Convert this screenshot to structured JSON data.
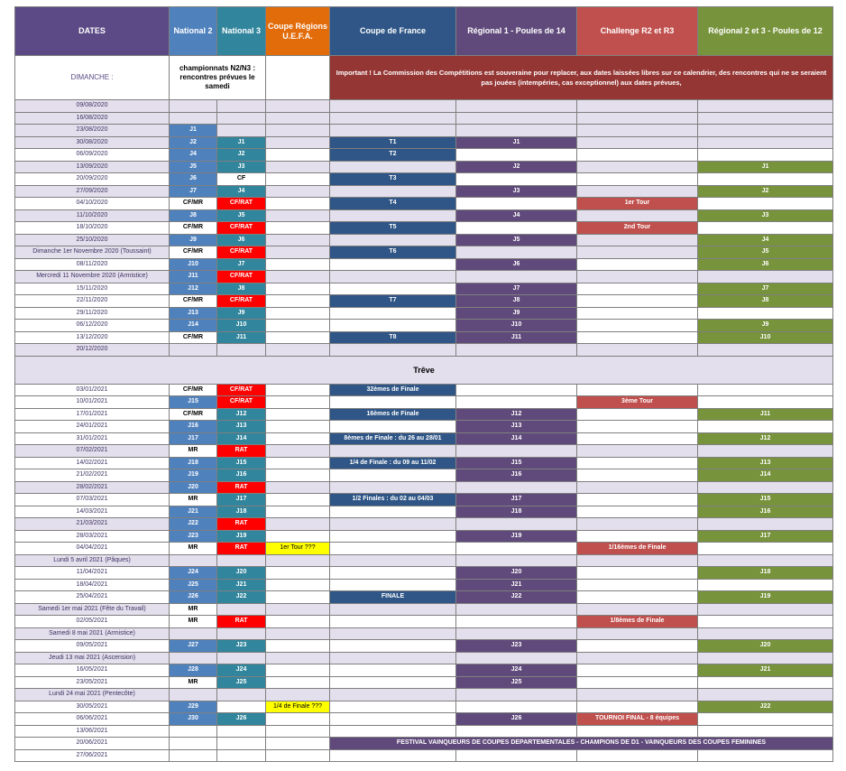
{
  "headers": {
    "dates": "DATES",
    "n2": "National 2",
    "n3": "National 3",
    "cru": "Coupe Régions U.E.F.A.",
    "cdf": "Coupe de France",
    "r1": "Régional 1 - Poules de 14",
    "ch": "Challenge R2 et R3",
    "r23": "Régional 2 et 3 - Poules de 12"
  },
  "subheader": {
    "dimanche": "DIMANCHE :",
    "championnats": "championnats N2/N3 : rencontres prévues le samedi",
    "important": "Important ! La Commission des Compétitions est souveraine pour replacer, aux dates laissées libres sur ce calendrier, des rencontres qui ne se seraient pas jouées (intempéries, cas exceptionnel) aux dates prévues,"
  },
  "treve": "Trêve",
  "festival": "FESTIVAL VAINQUEURS DE COUPES DEPARTEMENTALES - CHAMPIONS DE D1 - VAINQUEURS DES COUPES FEMININES",
  "colors": {
    "national2": "#4f81bd",
    "national3": "#31859c",
    "coupe_regions": "#e26b0a",
    "coupe_de_france": "#2f5686",
    "regional1": "#604a7b",
    "challenge": "#c0504d",
    "regional23": "#77933c",
    "rat": "#ff0000",
    "row_shade": "#e4dfec"
  },
  "rows_a": [
    {
      "d": "09/08/2020",
      "sh": 1,
      "n2": "",
      "n3": "",
      "cru": "",
      "cdf": "",
      "r1": "",
      "ch": "",
      "r23": ""
    },
    {
      "d": "16/08/2020",
      "sh": 1,
      "n2": "",
      "n3": "",
      "cru": "",
      "cdf": "",
      "r1": "",
      "ch": "",
      "r23": ""
    },
    {
      "d": "23/08/2020",
      "sh": 1,
      "n2": "J1",
      "n3": "",
      "cru": "",
      "cdf": "",
      "r1": "",
      "ch": "",
      "r23": ""
    },
    {
      "d": "30/08/2020",
      "sh": 1,
      "n2": "J2",
      "n3": "J1",
      "cru": "",
      "cdf": "T1",
      "r1": "J1",
      "ch": "",
      "r23": ""
    },
    {
      "d": "06/09/2020",
      "sh": 0,
      "n2": "J4",
      "n3": "J2",
      "cru": "",
      "cdf": "T2",
      "r1": "",
      "ch": "",
      "r23": ""
    },
    {
      "d": "13/09/2020",
      "sh": 1,
      "n2": "J5",
      "n3": "J3",
      "cru": "",
      "cdf": "",
      "r1": "J2",
      "ch": "",
      "r23": "J1"
    },
    {
      "d": "20/09/2020",
      "sh": 0,
      "n2": "J6",
      "n3": "CF",
      "cru": "",
      "cdf": "T3",
      "r1": "",
      "ch": "",
      "r23": ""
    },
    {
      "d": "27/09/2020",
      "sh": 1,
      "n2": "J7",
      "n3": "J4",
      "cru": "",
      "cdf": "",
      "r1": "J3",
      "ch": "",
      "r23": "J2"
    },
    {
      "d": "04/10/2020",
      "sh": 0,
      "n2": "CF/MR",
      "n3": "CF/RAT",
      "cru": "",
      "cdf": "T4",
      "r1": "",
      "ch": "1er Tour",
      "r23": ""
    },
    {
      "d": "11/10/2020",
      "sh": 1,
      "n2": "J8",
      "n3": "J5",
      "cru": "",
      "cdf": "",
      "r1": "J4",
      "ch": "",
      "r23": "J3"
    },
    {
      "d": "18/10/2020",
      "sh": 0,
      "n2": "CF/MR",
      "n3": "CF/RAT",
      "cru": "",
      "cdf": "T5",
      "r1": "",
      "ch": "2nd Tour",
      "r23": ""
    },
    {
      "d": "25/10/2020",
      "sh": 1,
      "n2": "J9",
      "n3": "J6",
      "cru": "",
      "cdf": "",
      "r1": "J5",
      "ch": "",
      "r23": "J4"
    },
    {
      "d": "Dimanche 1er Novembre 2020 (Toussaint)",
      "sh": 1,
      "n2": "CF/MR",
      "n3": "CF/RAT",
      "cru": "",
      "cdf": "T6",
      "r1": "",
      "ch": "",
      "r23": "J5"
    },
    {
      "d": "08/11/2020",
      "sh": 0,
      "n2": "J10",
      "n3": "J7",
      "cru": "",
      "cdf": "",
      "r1": "J6",
      "ch": "",
      "r23": "J6"
    },
    {
      "d": "Mercredi 11 Novembre 2020 (Armistice)",
      "sh": 1,
      "n2": "J11",
      "n3": "CF/RAT",
      "cru": "",
      "cdf": "",
      "r1": "",
      "ch": "",
      "r23": ""
    },
    {
      "d": "15/11/2020",
      "sh": 0,
      "n2": "J12",
      "n3": "J8",
      "cru": "",
      "cdf": "",
      "r1": "J7",
      "ch": "",
      "r23": "J7"
    },
    {
      "d": "22/11/2020",
      "sh": 0,
      "n2": "CF/MR",
      "n3": "CF/RAT",
      "cru": "",
      "cdf": "T7",
      "r1": "J8",
      "ch": "",
      "r23": "J8"
    },
    {
      "d": "29/11/2020",
      "sh": 0,
      "n2": "J13",
      "n3": "J9",
      "cru": "",
      "cdf": "",
      "r1": "J9",
      "ch": "",
      "r23": ""
    },
    {
      "d": "06/12/2020",
      "sh": 0,
      "n2": "J14",
      "n3": "J10",
      "cru": "",
      "cdf": "",
      "r1": "J10",
      "ch": "",
      "r23": "J9"
    },
    {
      "d": "13/12/2020",
      "sh": 0,
      "n2": "CF/MR",
      "n3": "J11",
      "cru": "",
      "cdf": "T8",
      "r1": "J11",
      "ch": "",
      "r23": "J10"
    },
    {
      "d": "20/12/2020",
      "sh": 1,
      "n2": "",
      "n3": "",
      "cru": "",
      "cdf": "",
      "r1": "",
      "ch": "",
      "r23": ""
    }
  ],
  "rows_b": [
    {
      "d": "03/01/2021",
      "sh": 0,
      "n2": "CF/MR",
      "n3": "CF/RAT",
      "cru": "",
      "cdf": "32èmes de Finale",
      "r1": "",
      "ch": "",
      "r23": ""
    },
    {
      "d": "10/01/2021",
      "sh": 0,
      "n2": "J15",
      "n3": "CF/RAT",
      "cru": "",
      "cdf": "",
      "r1": "",
      "ch": "3ème Tour",
      "r23": ""
    },
    {
      "d": "17/01/2021",
      "sh": 0,
      "n2": "CF/MR",
      "n3": "J12",
      "cru": "",
      "cdf": "16èmes de Finale",
      "r1": "J12",
      "ch": "",
      "r23": "J11"
    },
    {
      "d": "24/01/2021",
      "sh": 0,
      "n2": "J16",
      "n3": "J13",
      "cru": "",
      "cdf": "",
      "r1": "J13",
      "ch": "",
      "r23": ""
    },
    {
      "d": "31/01/2021",
      "sh": 0,
      "n2": "J17",
      "n3": "J14",
      "cru": "",
      "cdf": "8èmes de Finale : du 26 au 28/01",
      "r1": "J14",
      "ch": "",
      "r23": "J12"
    },
    {
      "d": "07/02/2021",
      "sh": 1,
      "n2": "MR",
      "n3": "RAT",
      "cru": "",
      "cdf": "",
      "r1": "",
      "ch": "",
      "r23": ""
    },
    {
      "d": "14/02/2021",
      "sh": 0,
      "n2": "J18",
      "n3": "J15",
      "cru": "",
      "cdf": "1/4 de Finale : du 09 au 11/02",
      "r1": "J15",
      "ch": "",
      "r23": "J13"
    },
    {
      "d": "21/02/2021",
      "sh": 0,
      "n2": "J19",
      "n3": "J16",
      "cru": "",
      "cdf": "",
      "r1": "J16",
      "ch": "",
      "r23": "J14"
    },
    {
      "d": "28/02/2021",
      "sh": 1,
      "n2": "J20",
      "n3": "RAT",
      "cru": "",
      "cdf": "",
      "r1": "",
      "ch": "",
      "r23": ""
    },
    {
      "d": "07/03/2021",
      "sh": 0,
      "n2": "MR",
      "n3": "J17",
      "cru": "",
      "cdf": "1/2 Finales : du 02 au 04/03",
      "r1": "J17",
      "ch": "",
      "r23": "J15"
    },
    {
      "d": "14/03/2021",
      "sh": 0,
      "n2": "J21",
      "n3": "J18",
      "cru": "",
      "cdf": "",
      "r1": "J18",
      "ch": "",
      "r23": "J16"
    },
    {
      "d": "21/03/2021",
      "sh": 1,
      "n2": "J22",
      "n3": "RAT",
      "cru": "",
      "cdf": "",
      "r1": "",
      "ch": "",
      "r23": ""
    },
    {
      "d": "28/03/2021",
      "sh": 0,
      "n2": "J23",
      "n3": "J19",
      "cru": "",
      "cdf": "",
      "r1": "J19",
      "ch": "",
      "r23": "J17"
    },
    {
      "d": "04/04/2021",
      "sh": 0,
      "n2": "MR",
      "n3": "RAT",
      "cru": "1er Tour ???",
      "cdf": "",
      "r1": "",
      "ch": "1/16èmes de Finale",
      "r23": ""
    },
    {
      "d": "Lundi 5 avril 2021 (Pâques)",
      "sh": 1,
      "n2": "",
      "n3": "",
      "cru": "",
      "cdf": "",
      "r1": "",
      "ch": "",
      "r23": ""
    },
    {
      "d": "11/04/2021",
      "sh": 0,
      "n2": "J24",
      "n3": "J20",
      "cru": "",
      "cdf": "",
      "r1": "J20",
      "ch": "",
      "r23": "J18"
    },
    {
      "d": "18/04/2021",
      "sh": 0,
      "n2": "J25",
      "n3": "J21",
      "cru": "",
      "cdf": "",
      "r1": "J21",
      "ch": "",
      "r23": ""
    },
    {
      "d": "25/04/2021",
      "sh": 0,
      "n2": "J26",
      "n3": "J22",
      "cru": "",
      "cdf": "FINALE",
      "r1": "J22",
      "ch": "",
      "r23": "J19"
    },
    {
      "d": "Samedi 1er mai 2021 (Fête du Travail)",
      "sh": 1,
      "n2": "MR",
      "n3": "",
      "cru": "",
      "cdf": "",
      "r1": "",
      "ch": "",
      "r23": ""
    },
    {
      "d": "02/05/2021",
      "sh": 0,
      "n2": "MR",
      "n3": "RAT",
      "cru": "",
      "cdf": "",
      "r1": "",
      "ch": "1/8èmes de Finale",
      "r23": ""
    },
    {
      "d": "Samedi 8 mai 2021 (Armistice)",
      "sh": 1,
      "n2": "",
      "n3": "",
      "cru": "",
      "cdf": "",
      "r1": "",
      "ch": "",
      "r23": ""
    },
    {
      "d": "09/05/2021",
      "sh": 0,
      "n2": "J27",
      "n3": "J23",
      "cru": "",
      "cdf": "",
      "r1": "J23",
      "ch": "",
      "r23": "J20"
    },
    {
      "d": "Jeudi 13 mai 2021 (Ascension)",
      "sh": 1,
      "n2": "",
      "n3": "",
      "cru": "",
      "cdf": "",
      "r1": "",
      "ch": "",
      "r23": ""
    },
    {
      "d": "16/05/2021",
      "sh": 0,
      "n2": "J28",
      "n3": "J24",
      "cru": "",
      "cdf": "",
      "r1": "J24",
      "ch": "",
      "r23": "J21"
    },
    {
      "d": "23/05/2021",
      "sh": 0,
      "n2": "MR",
      "n3": "J25",
      "cru": "",
      "cdf": "",
      "r1": "J25",
      "ch": "",
      "r23": ""
    },
    {
      "d": "Lundi 24 mai 2021 (Pentecôte)",
      "sh": 1,
      "n2": "",
      "n3": "",
      "cru": "",
      "cdf": "",
      "r1": "",
      "ch": "",
      "r23": ""
    },
    {
      "d": "30/05/2021",
      "sh": 0,
      "n2": "J29",
      "n3": "",
      "cru": "1/4 de Finale ???",
      "cdf": "",
      "r1": "",
      "ch": "",
      "r23": "J22"
    },
    {
      "d": "06/06/2021",
      "sh": 0,
      "n2": "J30",
      "n3": "J26",
      "cru": "",
      "cdf": "",
      "r1": "J26",
      "ch": "TOURNOI FINAL - 8 équipes",
      "r23": ""
    },
    {
      "d": "13/06/2021",
      "sh": 0,
      "n2": "",
      "n3": "",
      "cru": "",
      "cdf": "",
      "r1": "",
      "ch": "",
      "r23": ""
    },
    {
      "d": "20/06/2021",
      "sh": 0,
      "n2": "",
      "n3": "",
      "cru": "",
      "cdf": "",
      "r1": "",
      "ch": "",
      "r23": "",
      "festival": 1
    },
    {
      "d": "27/06/2021",
      "sh": 0,
      "n2": "",
      "n3": "",
      "cru": "",
      "cdf": "",
      "r1": "",
      "ch": "",
      "r23": ""
    }
  ]
}
